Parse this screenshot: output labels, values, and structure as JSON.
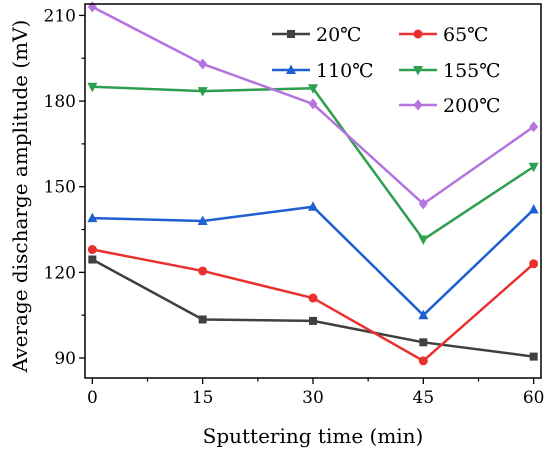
{
  "chart_data": {
    "type": "line",
    "xlabel": "Sputtering time (min)",
    "ylabel": "Average discharge amplitude (mV)",
    "x": [
      0,
      15,
      30,
      45,
      60
    ],
    "x_ticks": [
      "0",
      "15",
      "30",
      "45",
      "60"
    ],
    "y_ticks": [
      "90",
      "120",
      "150",
      "180",
      "210"
    ],
    "xlim": [
      -1,
      61
    ],
    "ylim": [
      83,
      214
    ],
    "grid": false,
    "legend_position": "top-right",
    "series": [
      {
        "name": "20℃",
        "color": "#404040",
        "marker": "square",
        "values": [
          124.5,
          103.5,
          103.0,
          95.5,
          90.5
        ]
      },
      {
        "name": "65℃",
        "color": "#e8312f",
        "marker": "circle",
        "values": [
          128,
          120.5,
          111,
          89,
          123
        ]
      },
      {
        "name": "110℃",
        "color": "#1f5fd1",
        "marker": "triangle-up",
        "values": [
          139,
          138,
          143,
          105,
          142
        ]
      },
      {
        "name": "155℃",
        "color": "#2e9e4f",
        "marker": "triangle-down",
        "values": [
          185,
          183.5,
          184.5,
          131.5,
          157
        ]
      },
      {
        "name": "200℃",
        "color": "#b573e0",
        "marker": "diamond",
        "values": [
          213,
          193,
          179,
          144,
          171
        ]
      }
    ]
  }
}
